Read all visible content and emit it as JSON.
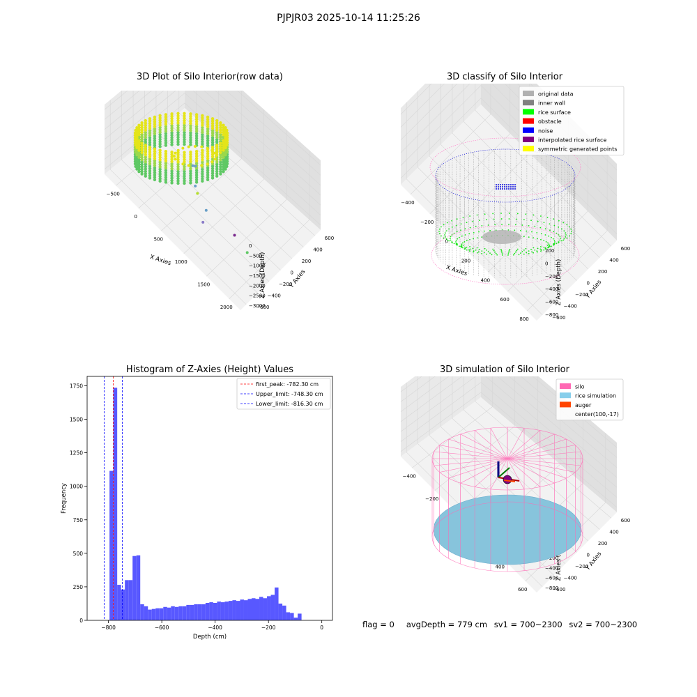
{
  "suptitle": "PJPJR03 2025-10-14 11:25:26",
  "colors": {
    "pane": "#f2f2f2",
    "pane_side": "#e9e9e9",
    "pane_dark": "#e0e0e0",
    "grid": "#d6d6d6",
    "hist_bar": "#5050ff",
    "yellow": "#e4e419",
    "green": "#5fc864",
    "wall": "#8a8a8a",
    "rice_surface": "#16e616",
    "noise": "#1010e0",
    "silo": "#ff69b4",
    "rice_sim": "#87c4dc",
    "auger": "#ff4500"
  },
  "raw_plot": {
    "title": "3D Plot of Silo Interior(row data)",
    "x_label": "X Axies",
    "y_label": "Y Axies",
    "z_label": "Z Axies (Depth)",
    "x_ticks": [
      "−500",
      "0",
      "500",
      "1000",
      "1500",
      "2000"
    ],
    "y_ticks": [
      "600",
      "400",
      "200",
      "0",
      "−200",
      "−400",
      "−600"
    ],
    "z_ticks": [
      "0",
      "−500",
      "−1000",
      "−1500",
      "−2000",
      "−2500",
      "−3000"
    ],
    "outliers": [
      {
        "x": 1950,
        "y": 450,
        "z": -1500,
        "color": "#5fc864"
      },
      {
        "x": 300,
        "y": -50,
        "z": -2450,
        "color": "#6aa0c8"
      },
      {
        "x": 330,
        "y": -70,
        "z": -2450,
        "color": "#6aa0c8"
      },
      {
        "x": 520,
        "y": 100,
        "z": -2550,
        "color": "#6aa0c8"
      },
      {
        "x": 620,
        "y": 150,
        "z": -2550,
        "color": "#b4de2c"
      },
      {
        "x": 850,
        "y": 200,
        "z": -2700,
        "color": "#6aa0c8"
      },
      {
        "x": 900,
        "y": 300,
        "z": -2900,
        "color": "#8a7cc8"
      },
      {
        "x": 1300,
        "y": 100,
        "z": -3100,
        "color": "#7b2a8e"
      }
    ]
  },
  "classify_plot": {
    "title": "3D classify of Silo Interior",
    "x_label": "X Axies",
    "y_label": "Y Axies",
    "z_label": "Z Axies (Depth)",
    "x_ticks": [
      "−400",
      "−200",
      "0",
      "200",
      "400",
      "600",
      "800"
    ],
    "y_ticks": [
      "600",
      "400",
      "200",
      "0",
      "−200",
      "−400",
      "−600"
    ],
    "z_ticks": [
      "200",
      "0",
      "−200",
      "−400",
      "−600",
      "−800"
    ],
    "legend": [
      {
        "label": "original data",
        "color": "#b0b0b0"
      },
      {
        "label": "inner wall",
        "color": "#808080"
      },
      {
        "label": "rice surface",
        "color": "#00ff00"
      },
      {
        "label": "obstacle",
        "color": "#ff0000"
      },
      {
        "label": "noise",
        "color": "#0000ff"
      },
      {
        "label": "interpolated rice surface",
        "color": "#800080"
      },
      {
        "label": "symmetric generated points",
        "color": "#ffff00"
      }
    ]
  },
  "histogram": {
    "title": "Histogram of Z-Axies (Height) Values",
    "x_label": "Depth (cm)",
    "y_label": "Frequency",
    "x_ticks": [
      "−800",
      "−600",
      "−400",
      "−200",
      "0"
    ],
    "y_ticks": [
      "0",
      "250",
      "500",
      "750",
      "1000",
      "1250",
      "1500",
      "1750"
    ],
    "legend": [
      {
        "label": "first_peak: -782.30 cm",
        "color": "#ff0000"
      },
      {
        "label": "Upper_limit: -748.30 cm",
        "color": "#0000ff"
      },
      {
        "label": "Lower_limit: -816.30 cm",
        "color": "#0000ff"
      }
    ]
  },
  "simulation_plot": {
    "title": "3D simulation of Silo Interior",
    "x_label": "X Axies",
    "y_label": "Y Axies",
    "z_label": "Z Axies (Depth)",
    "x_ticks": [
      "−400",
      "−200",
      "0",
      "200",
      "400",
      "600"
    ],
    "y_ticks": [
      "600",
      "400",
      "200",
      "0",
      "−200",
      "−400",
      "−600"
    ],
    "z_ticks": [
      "400",
      "200",
      "0",
      "−200",
      "−400",
      "−600",
      "−800"
    ],
    "legend": [
      {
        "label": "silo",
        "color": "#ff69b4"
      },
      {
        "label": "rice simulation",
        "color": "#87ceeb"
      },
      {
        "label": "auger",
        "color": "#ff4500"
      },
      {
        "label": "center(100,-17)",
        "color": ""
      }
    ]
  },
  "footer": {
    "flag": "flag = 0",
    "avg_depth": "avgDepth = 779 cm",
    "sv1": "sv1 = 700~2300",
    "sv2": "sv2 = 700~2300"
  },
  "chart_data": [
    {
      "type": "scatter",
      "title": "3D Plot of Silo Interior(row data)",
      "xlabel": "X Axies",
      "ylabel": "Y Axies",
      "zlabel": "Z Axies (Depth)",
      "xlim": [
        -600,
        2100
      ],
      "ylim": [
        -700,
        700
      ],
      "zlim": [
        -3200,
        100
      ],
      "description_values": {
        "silo_ring_x_range": [
          -450,
          750
        ],
        "silo_ring_z_range": [
          -1300,
          0
        ]
      }
    },
    {
      "type": "scatter",
      "title": "3D classify of Silo Interior",
      "xlabel": "X Axies",
      "ylabel": "Y Axies",
      "zlabel": "Z Axies (Depth)",
      "xlim": [
        -500,
        800
      ],
      "ylim": [
        -700,
        700
      ],
      "zlim": [
        -900,
        250
      ],
      "series": [
        {
          "name": "original data"
        },
        {
          "name": "inner wall"
        },
        {
          "name": "rice surface"
        },
        {
          "name": "obstacle"
        },
        {
          "name": "noise"
        },
        {
          "name": "interpolated rice surface"
        },
        {
          "name": "symmetric generated points"
        }
      ]
    },
    {
      "type": "bar",
      "title": "Histogram of Z-Axies (Height) Values",
      "xlabel": "Depth (cm)",
      "ylabel": "Frequency",
      "xlim": [
        -880,
        40
      ],
      "ylim": [
        0,
        1820
      ],
      "bin_width": 14.4,
      "bin_start": -796,
      "values": [
        1115,
        1735,
        265,
        230,
        300,
        300,
        480,
        485,
        120,
        105,
        80,
        85,
        90,
        90,
        100,
        95,
        105,
        100,
        105,
        105,
        115,
        115,
        120,
        120,
        120,
        130,
        135,
        130,
        140,
        135,
        140,
        145,
        150,
        145,
        155,
        150,
        160,
        165,
        160,
        175,
        165,
        180,
        190,
        245,
        125,
        110,
        60,
        55,
        20,
        50
      ],
      "vlines": [
        {
          "name": "first_peak: -782.30 cm",
          "x": -782.3,
          "color": "#ff0000"
        },
        {
          "name": "Upper_limit: -748.30 cm",
          "x": -748.3,
          "color": "#0000ff"
        },
        {
          "name": "Lower_limit: -816.30 cm",
          "x": -816.3,
          "color": "#0000ff"
        }
      ]
    },
    {
      "type": "scatter",
      "title": "3D simulation of Silo Interior",
      "xlabel": "X Axies",
      "ylabel": "Y Axies",
      "zlabel": "Z Axies (Depth)",
      "xlim": [
        -550,
        750
      ],
      "ylim": [
        -700,
        700
      ],
      "zlim": [
        -900,
        450
      ],
      "series": [
        {
          "name": "silo"
        },
        {
          "name": "rice simulation"
        },
        {
          "name": "auger"
        },
        {
          "name": "center(100,-17)"
        }
      ]
    }
  ]
}
